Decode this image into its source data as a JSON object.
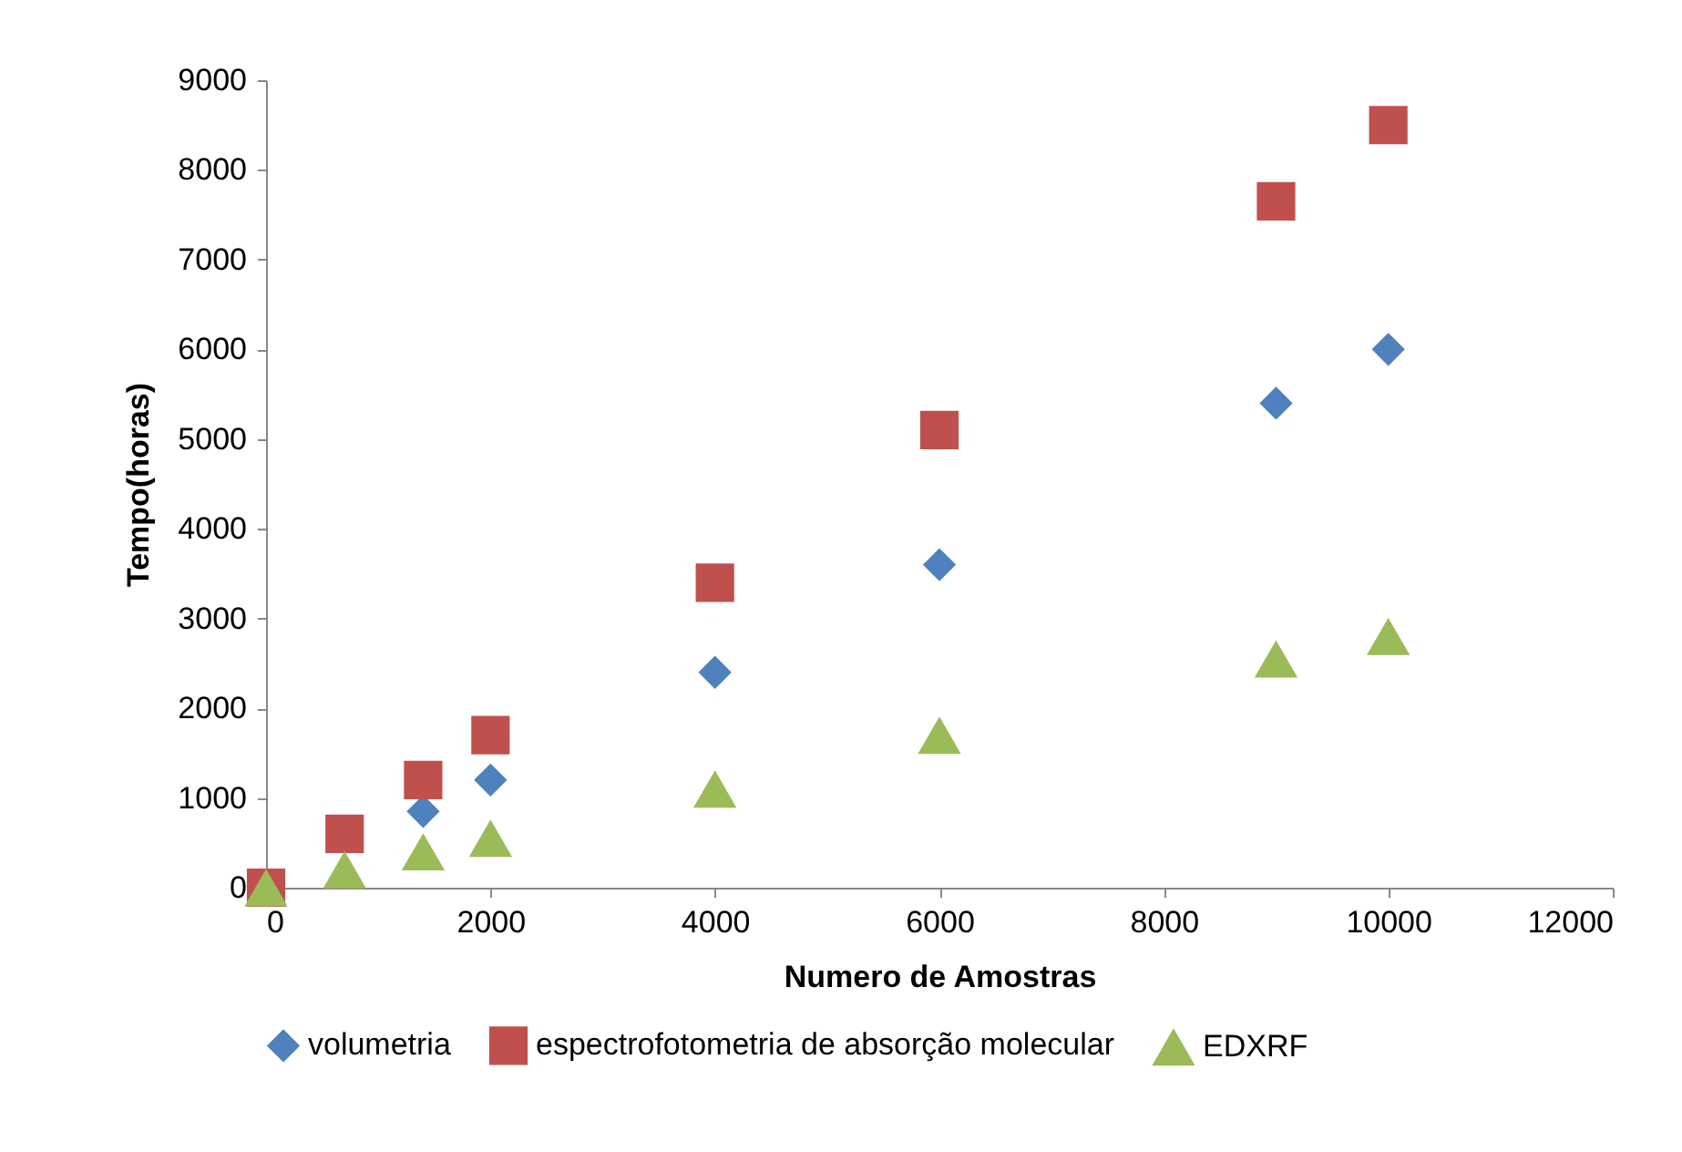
{
  "chart_data": {
    "type": "scatter",
    "xlabel": "Numero de Amostras",
    "ylabel": "Tempo(horas)",
    "x": [
      0,
      700,
      1400,
      2000,
      4000,
      6000,
      9000,
      10000
    ],
    "series": [
      {
        "name": "volumetria",
        "color": "#4f81bd",
        "marker": "diamond",
        "values": [
          null,
          null,
          850,
          1200,
          2400,
          3600,
          5400,
          6000
        ]
      },
      {
        "name": "espectrofotometria de absorção molecular",
        "color": "#c0504d",
        "marker": "square",
        "values": [
          0,
          600,
          1200,
          1700,
          3400,
          5100,
          7650,
          8500
        ]
      },
      {
        "name": "EDXRF",
        "color": "#9bbb59",
        "marker": "triangle",
        "values": [
          0,
          200,
          400,
          550,
          1100,
          1700,
          2550,
          2800
        ]
      }
    ],
    "xlim": [
      0,
      12000
    ],
    "xticks": [
      0,
      2000,
      4000,
      6000,
      8000,
      10000,
      12000
    ],
    "ylim": [
      0,
      9000
    ],
    "yticks": [
      0,
      1000,
      2000,
      3000,
      4000,
      5000,
      6000,
      7000,
      8000,
      9000
    ],
    "grid": false,
    "legend": "bottom"
  }
}
